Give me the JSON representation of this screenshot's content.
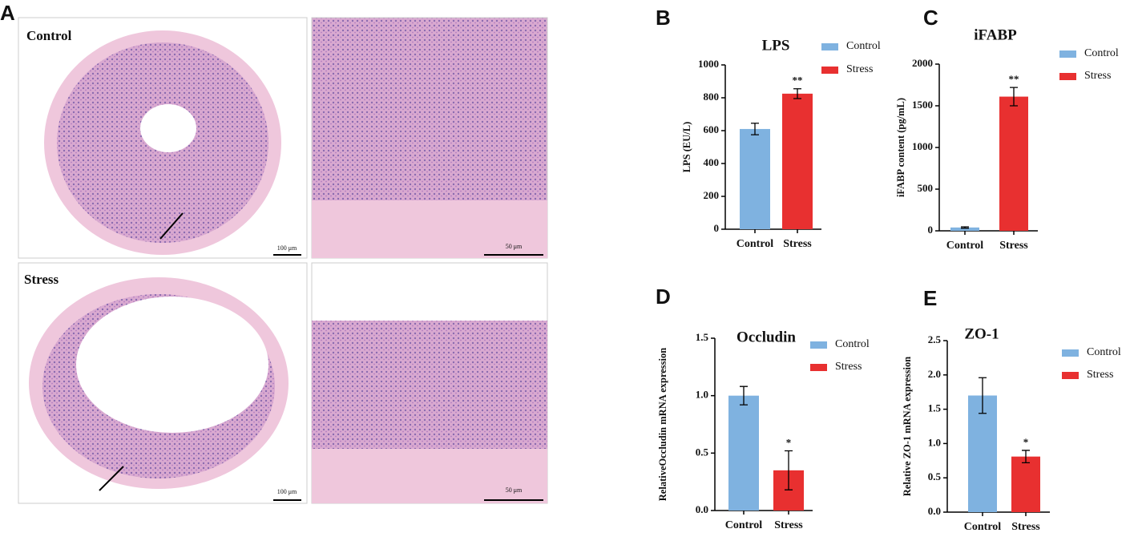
{
  "panel_a": {
    "letter": "A",
    "labels": [
      "Control",
      "Stress"
    ],
    "scales": [
      "100 μm",
      "50 μm",
      "100 μm",
      "50 μm"
    ]
  },
  "chart_data": [
    {
      "type": "bar",
      "letter": "B",
      "title": "LPS",
      "y_label": "LPS (EU/L)",
      "categories": [
        "Control",
        "Stress"
      ],
      "values": [
        610,
        825
      ],
      "errors": [
        35,
        30
      ],
      "significance": [
        null,
        "**"
      ],
      "colors": [
        "#7fb2e0",
        "#e83030"
      ],
      "ylim": [
        0,
        1000
      ],
      "yticks": [
        0,
        200,
        400,
        600,
        800,
        1000
      ]
    },
    {
      "type": "bar",
      "letter": "C",
      "title": "iFABP",
      "y_label": "iFABP content (pg/mL)",
      "categories": [
        "Control",
        "Stress"
      ],
      "values": [
        40,
        1610
      ],
      "errors": [
        8,
        110
      ],
      "significance": [
        null,
        "**"
      ],
      "colors": [
        "#7fb2e0",
        "#e83030"
      ],
      "ylim": [
        0,
        2000
      ],
      "yticks": [
        0,
        500,
        1000,
        1500,
        2000
      ]
    },
    {
      "type": "bar",
      "letter": "D",
      "title": "Occludin",
      "y_label": "RelativeOccludin mRNA expression",
      "categories": [
        "Control",
        "Stress"
      ],
      "values": [
        1.0,
        0.35
      ],
      "errors": [
        0.08,
        0.17
      ],
      "significance": [
        null,
        "*"
      ],
      "colors": [
        "#7fb2e0",
        "#e83030"
      ],
      "ylim": [
        0,
        1.5
      ],
      "yticks": [
        {
          "value": 0,
          "label": "0.0"
        },
        {
          "value": 0.5,
          "label": "0.5"
        },
        {
          "value": 1,
          "label": "1.0"
        },
        {
          "value": 1.5,
          "label": "1.5"
        }
      ]
    },
    {
      "type": "bar",
      "letter": "E",
      "title": "ZO-1",
      "y_label": "Relative ZO-1 mRNA expression",
      "categories": [
        "Control",
        "Stress"
      ],
      "values": [
        1.7,
        0.81
      ],
      "errors": [
        0.26,
        0.09
      ],
      "significance": [
        null,
        "*"
      ],
      "colors": [
        "#7fb2e0",
        "#e83030"
      ],
      "ylim": [
        0,
        2.5
      ],
      "yticks": [
        {
          "value": 0,
          "label": "0.0"
        },
        {
          "value": 0.5,
          "label": "0.5"
        },
        {
          "value": 1,
          "label": "1.0"
        },
        {
          "value": 1.5,
          "label": "1.5"
        },
        {
          "value": 2,
          "label": "2.0"
        },
        {
          "value": 2.5,
          "label": "2.5"
        }
      ]
    }
  ]
}
